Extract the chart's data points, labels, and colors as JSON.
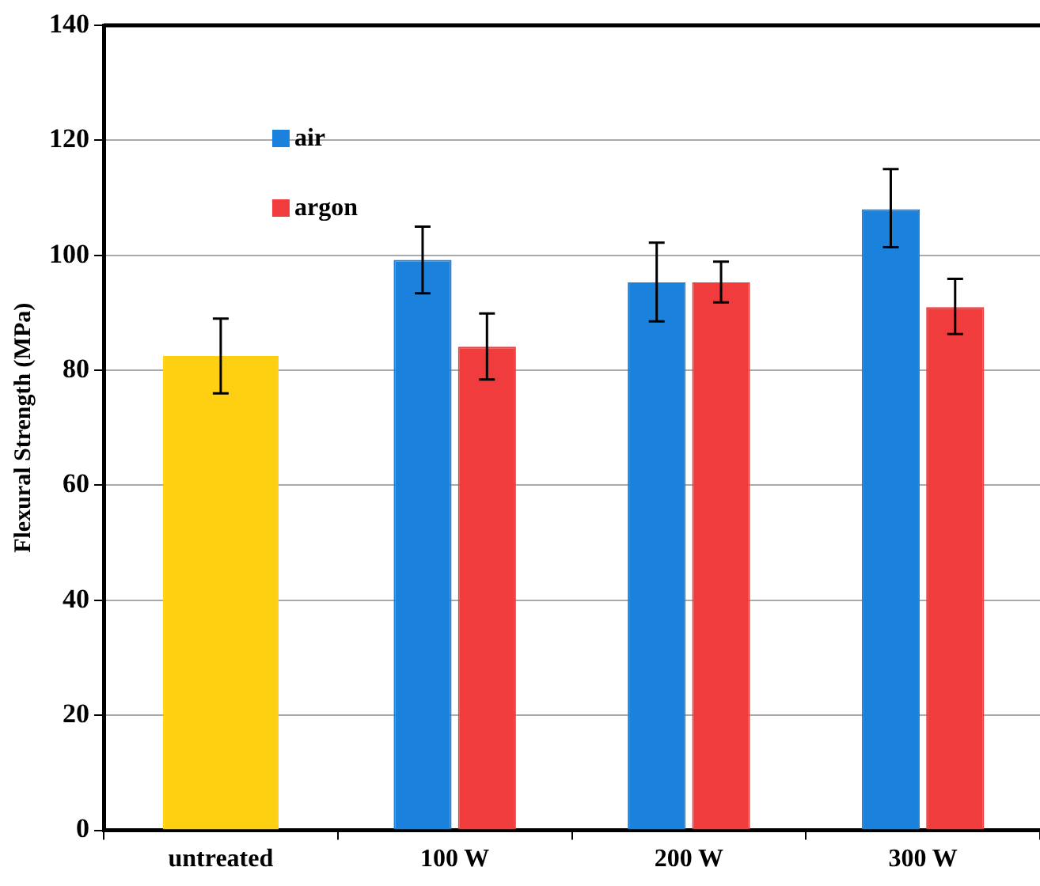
{
  "chart_data": {
    "type": "bar",
    "ylabel": "Flexural Strength (MPa)",
    "categories": [
      "untreated",
      "100 W",
      "200 W",
      "300 W"
    ],
    "series": [
      {
        "color": "#ffd011",
        "values": [
          82.5,
          null,
          null,
          null
        ],
        "errors": [
          [
            76,
            89
          ],
          null,
          null,
          null
        ]
      },
      {
        "name": "air",
        "color": "#1a82dc",
        "values": [
          null,
          99.2,
          95.3,
          108
        ],
        "errors": [
          null,
          [
            93.4,
            105
          ],
          [
            88.5,
            102.2
          ],
          [
            101.4,
            115
          ]
        ]
      },
      {
        "name": "argon",
        "color": "#f03c3c",
        "values": [
          null,
          84.1,
          95.3,
          91
        ],
        "errors": [
          null,
          [
            78.4,
            89.9
          ],
          [
            91.8,
            98.9
          ],
          [
            86.3,
            95.9
          ]
        ]
      }
    ],
    "ylim": [
      0,
      140
    ],
    "yticks": [
      0,
      20,
      40,
      60,
      80,
      100,
      120,
      140
    ],
    "grid": "y",
    "legend": "top left"
  }
}
